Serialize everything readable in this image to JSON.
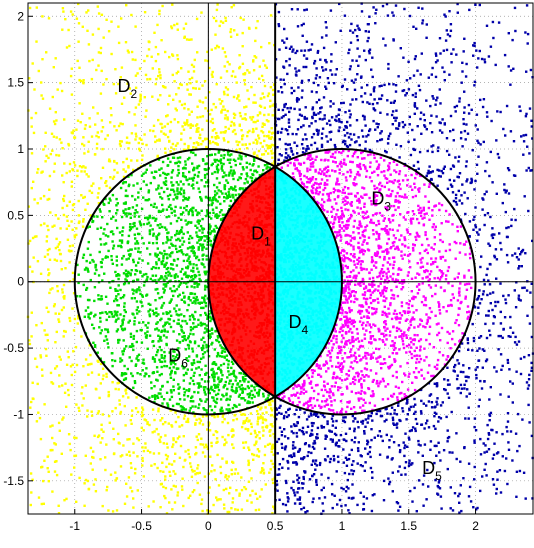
{
  "chart_data": {
    "type": "scatter",
    "title": "",
    "xlabel": "",
    "ylabel": "",
    "xlim": [
      -1.35,
      2.43
    ],
    "ylim": [
      -1.75,
      2.1
    ],
    "grid": true,
    "x_ticks": [
      -1,
      -0.5,
      0,
      0.5,
      1,
      1.5,
      2
    ],
    "y_ticks": [
      2,
      1.5,
      1,
      0.5,
      0,
      -0.5,
      -1,
      -1.5
    ],
    "x_tick_labels": [
      "-1",
      "-0.5",
      "0",
      "0.5",
      "1",
      "1.5",
      "2"
    ],
    "y_tick_labels": [
      "2",
      "1.5",
      "1",
      "0.5",
      "0",
      "-0.5",
      "-1",
      "-1.5"
    ],
    "circles": [
      {
        "center": [
          0,
          0
        ],
        "radius": 1
      },
      {
        "center": [
          1,
          0
        ],
        "radius": 1
      }
    ],
    "vertical_line_x": 0.5,
    "sample_count": 9000,
    "regions": [
      {
        "id": "D1",
        "letter": "D",
        "sub": "1",
        "color": "#ff0000",
        "label_at": [
          0.32,
          0.32
        ],
        "rule": "inside both circles, x < 0.5"
      },
      {
        "id": "D2",
        "letter": "D",
        "sub": "2",
        "color": "#ffff00",
        "label_at": [
          -0.68,
          1.43
        ],
        "rule": "outside both circles, x < 0.5"
      },
      {
        "id": "D3",
        "letter": "D",
        "sub": "3",
        "color": "#ff00ff",
        "label_at": [
          1.22,
          0.58
        ],
        "rule": "inside circle 2 only, x >= 0.5"
      },
      {
        "id": "D4",
        "letter": "D",
        "sub": "4",
        "color": "#00ffff",
        "label_at": [
          0.6,
          -0.35
        ],
        "rule": "inside both circles, x >= 0.5"
      },
      {
        "id": "D5",
        "letter": "D",
        "sub": "5",
        "color": "#0000aa",
        "label_at": [
          1.6,
          -1.45
        ],
        "rule": "outside both circles, x >= 0.5"
      },
      {
        "id": "D6",
        "letter": "D",
        "sub": "6",
        "color": "#00dd00",
        "label_at": [
          -0.3,
          -0.6
        ],
        "rule": "inside circle 1 only, x < 0.5"
      }
    ]
  }
}
